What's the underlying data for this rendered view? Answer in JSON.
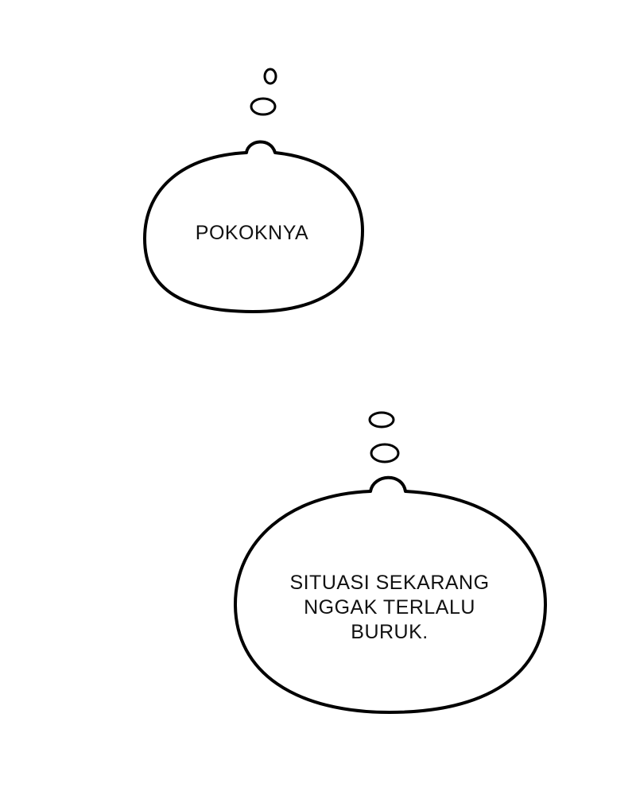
{
  "bubbles": [
    {
      "lines": [
        "POKOKNYA"
      ]
    },
    {
      "lines": [
        "SITUASI SEKARANG",
        "NGGAK TERLALU",
        "BURUK."
      ]
    }
  ],
  "colors": {
    "background": "#ffffff",
    "outline": "#000000",
    "text": "#111111"
  }
}
